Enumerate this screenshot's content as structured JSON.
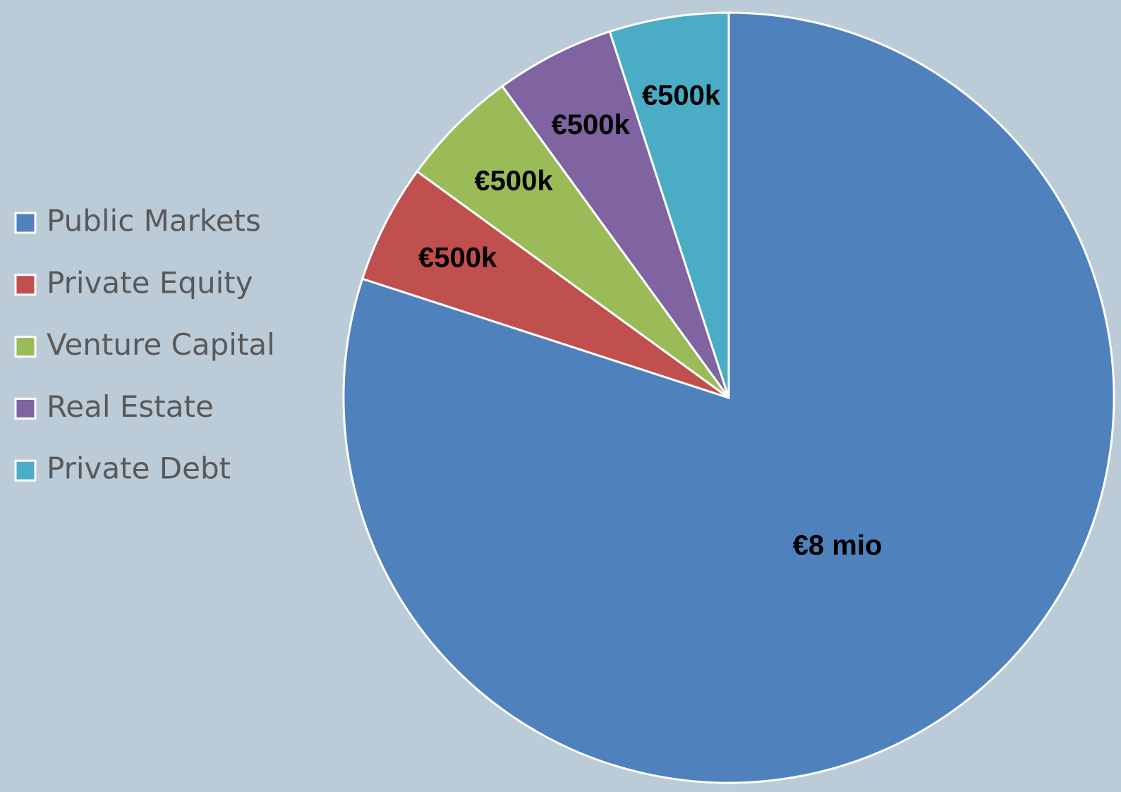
{
  "chart_data": {
    "type": "pie",
    "categories": [
      "Public Markets",
      "Private Equity",
      "Venture Capital",
      "Real Estate",
      "Private Debt"
    ],
    "values": [
      8000000,
      500000,
      500000,
      500000,
      500000
    ],
    "value_labels": [
      "€8 mio",
      "€500k",
      "€500k",
      "€500k",
      "€500k"
    ],
    "colors": [
      "#4f81bd",
      "#c0504d",
      "#9bbb59",
      "#8064a2",
      "#4bacc6"
    ],
    "legend": "left"
  }
}
